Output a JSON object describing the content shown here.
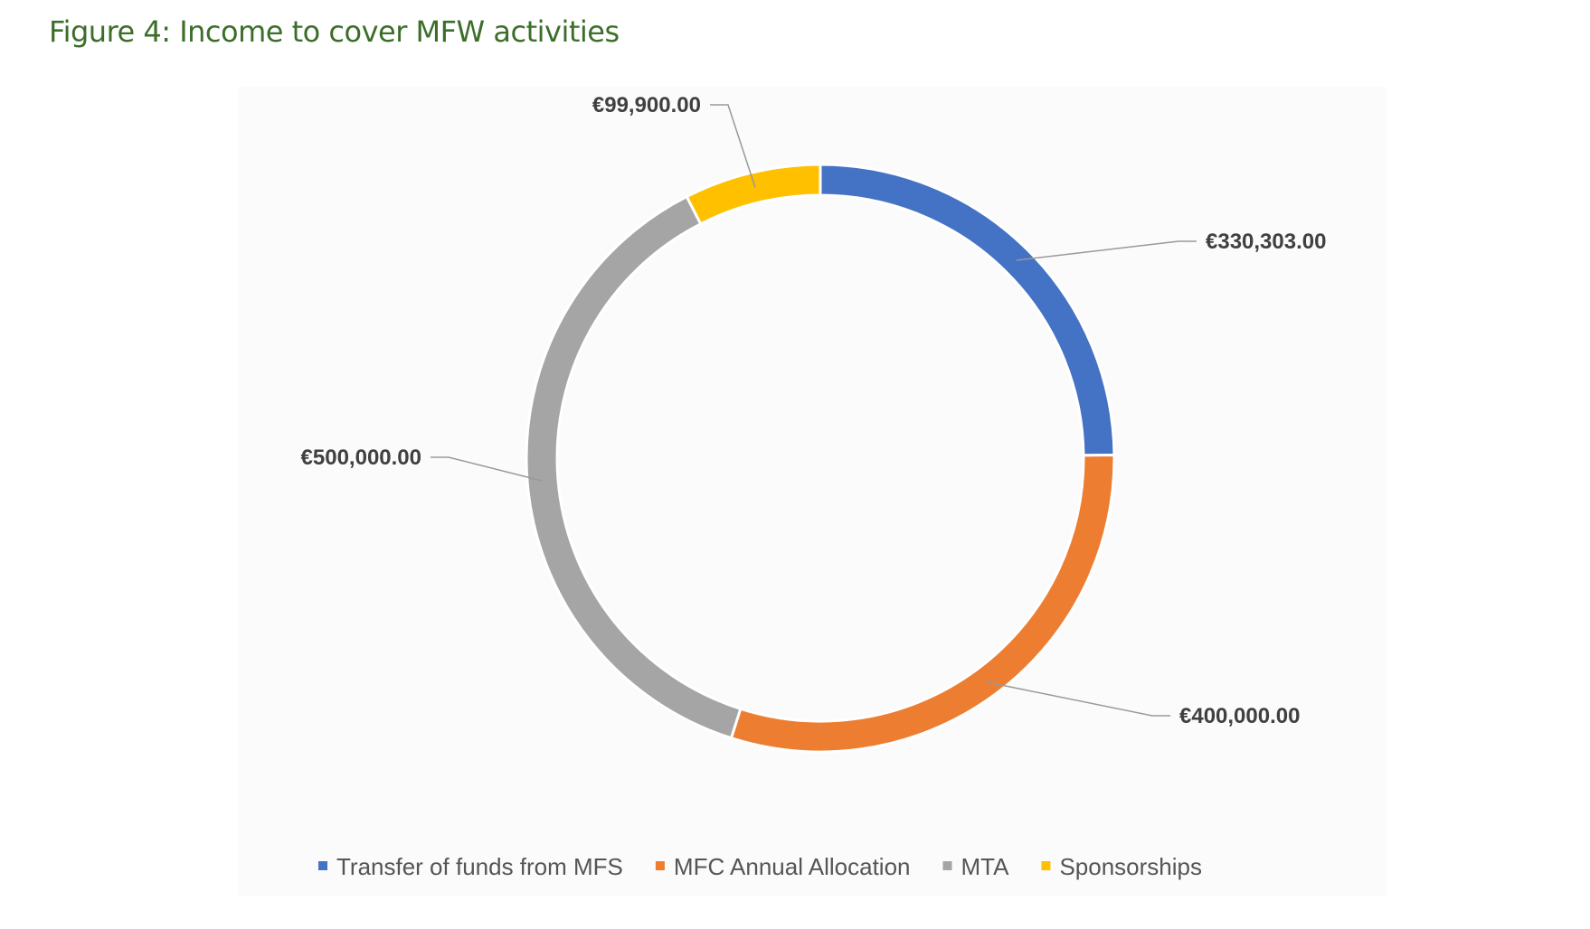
{
  "title": "Figure 4: Income to cover MFW activities",
  "chart_data": {
    "type": "pie",
    "variant": "donut",
    "title": "Figure 4: Income to cover MFW activities",
    "categories": [
      "Transfer of funds from MFS",
      "MFC Annual Allocation",
      "MTA",
      "Sponsorships"
    ],
    "values": [
      330303,
      400000,
      500000,
      99900
    ],
    "data_labels": [
      "€330,303.00",
      "€400,000.00",
      "€500,000.00",
      "€99,900.00"
    ],
    "colors": [
      "#4472c4",
      "#ed7d31",
      "#a5a5a5",
      "#ffc000"
    ],
    "legend_position": "bottom",
    "start_angle": "top, clockwise"
  }
}
